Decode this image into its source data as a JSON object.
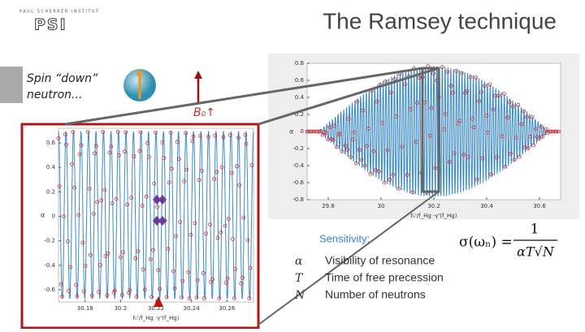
{
  "header": {
    "logo_text": "PAUL SCHERRER INSTITUT",
    "logo_mark": "PSI",
    "title": "The Ramsey technique"
  },
  "illustration": {
    "spin_label": [
      "Spin “down”",
      "neutron..."
    ],
    "field_label": "B₀↑"
  },
  "zoom_plot": {
    "y_label": "α",
    "x_label": "fₙ'/f_Hg ·γ'(f_Hg)",
    "xlim": [
      30.165,
      30.275
    ],
    "xticks": [
      30.18,
      30.2,
      30.22,
      30.24,
      30.26
    ],
    "ylim": [
      -0.7,
      0.72
    ],
    "yticks": [
      0.6,
      0.4,
      0.2,
      0,
      -0.2,
      -0.4,
      -0.6
    ]
  },
  "full_plot": {
    "y_label": "α",
    "x_label": "fₙ'/f_Hg ·γ'(f_Hg)",
    "xlim": [
      29.72,
      30.68
    ],
    "xticks": [
      29.8,
      30,
      30.2,
      30.4,
      30.6
    ],
    "ylim": [
      -0.8,
      0.8
    ],
    "yticks": [
      0.8,
      0.6,
      0.4,
      0.2,
      0,
      -0.2,
      -0.4,
      -0.6,
      -0.8
    ]
  },
  "sensitivity": {
    "heading": "Sensitivity:",
    "formula_lhs": "σ(ωₙ) =",
    "numerator": "1",
    "denominator": "αT√N",
    "terms": [
      {
        "symbol": "α",
        "description": "Visibility of resonance"
      },
      {
        "symbol": "T",
        "description": "Time of free precession"
      },
      {
        "symbol": "N",
        "description": "Number of neutrons"
      }
    ]
  }
}
